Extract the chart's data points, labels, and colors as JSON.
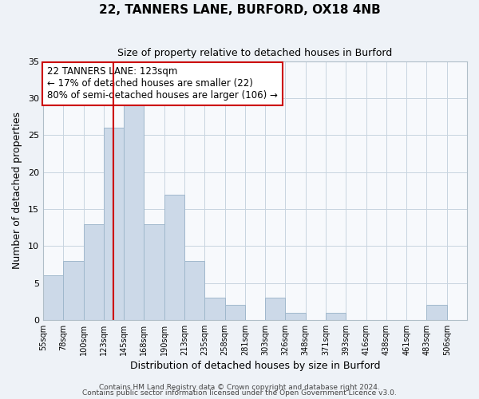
{
  "title": "22, TANNERS LANE, BURFORD, OX18 4NB",
  "subtitle": "Size of property relative to detached houses in Burford",
  "xlabel": "Distribution of detached houses by size in Burford",
  "ylabel": "Number of detached properties",
  "bar_labels": [
    "55sqm",
    "78sqm",
    "100sqm",
    "123sqm",
    "145sqm",
    "168sqm",
    "190sqm",
    "213sqm",
    "235sqm",
    "258sqm",
    "281sqm",
    "303sqm",
    "326sqm",
    "348sqm",
    "371sqm",
    "393sqm",
    "416sqm",
    "438sqm",
    "461sqm",
    "483sqm",
    "506sqm"
  ],
  "bar_values": [
    6,
    8,
    13,
    26,
    29,
    13,
    17,
    8,
    3,
    2,
    0,
    3,
    1,
    0,
    1,
    0,
    0,
    0,
    0,
    2,
    0
  ],
  "bar_color": "#ccd9e8",
  "bar_edge_color": "#a0b8cc",
  "vline_x": 3.5,
  "vline_color": "#cc0000",
  "ylim": [
    0,
    35
  ],
  "yticks": [
    0,
    5,
    10,
    15,
    20,
    25,
    30,
    35
  ],
  "annotation_title": "22 TANNERS LANE: 123sqm",
  "annotation_line1": "← 17% of detached houses are smaller (22)",
  "annotation_line2": "80% of semi-detached houses are larger (106) →",
  "annotation_box_color": "#ffffff",
  "annotation_box_edge": "#cc0000",
  "footer1": "Contains HM Land Registry data © Crown copyright and database right 2024.",
  "footer2": "Contains public sector information licensed under the Open Government Licence v3.0.",
  "background_color": "#eef2f7",
  "plot_background": "#f7f9fc",
  "grid_color": "#c8d4e0"
}
